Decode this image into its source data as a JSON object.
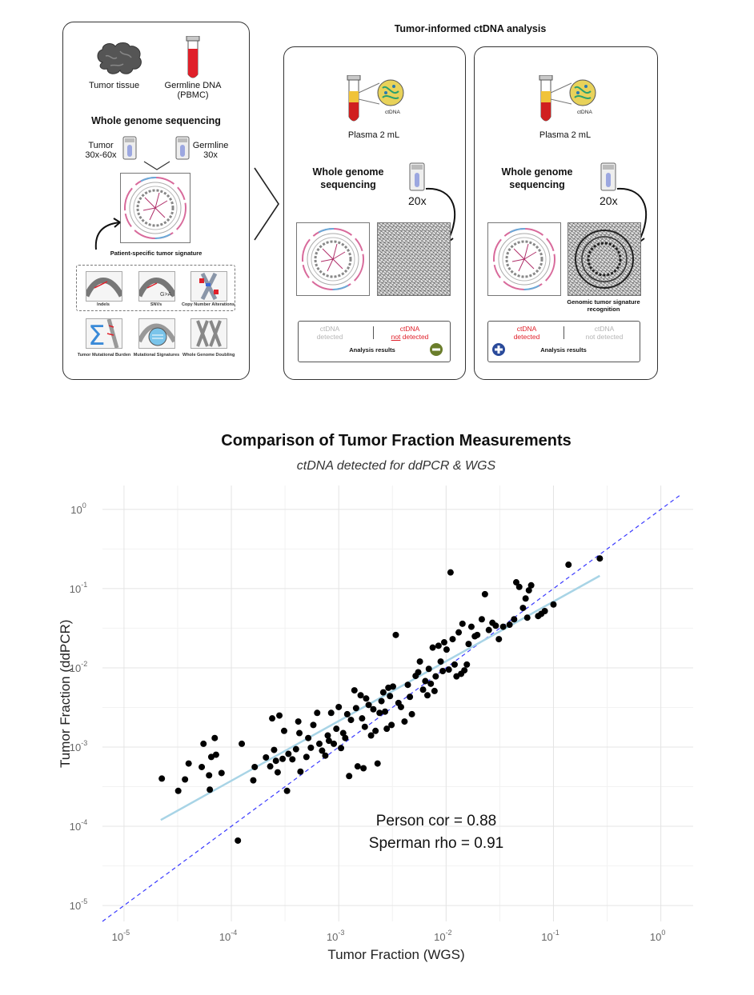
{
  "diagram": {
    "left_panel": {
      "tumor_tissue": "Tumor tissue",
      "germline_dna": "Germline DNA",
      "germline_sub": "(PBMC)",
      "wgs_heading": "Whole genome sequencing",
      "tumor_depth_1": "Tumor",
      "tumor_depth_2": "30x-60x",
      "germline_depth_1": "Germline",
      "germline_depth_2": "30x",
      "signature_label": "Patient-specific tumor signature",
      "features": [
        "Indels",
        "SNVs",
        "Copy Number Alterations",
        "Tumor Mutational Burden",
        "Mutational Signatures",
        "Whole Genome Doubling"
      ],
      "snv_text": "G>A"
    },
    "analysis_title": "Tumor-informed ctDNA analysis",
    "ctdna_badge": "ctDNA",
    "mid_panel": {
      "plasma": "Plasma 2 mL",
      "wgs_1": "Whole genome",
      "wgs_2": "sequencing",
      "depth": "20x",
      "res_left_1": "ctDNA",
      "res_left_2": "detected",
      "res_right_1": "ctDNA",
      "res_right_2a": "not",
      "res_right_2b": " detected",
      "results": "Analysis results",
      "result_icon": "minus-circle-icon"
    },
    "right_panel": {
      "plasma": "Plasma 2 mL",
      "wgs_1": "Whole genome",
      "wgs_2": "sequencing",
      "depth": "20x",
      "recog_1": "Genomic tumor signature",
      "recog_2": "recognition",
      "res_left_1": "ctDNA",
      "res_left_2": "detected",
      "res_right_1": "ctDNA",
      "res_right_2": "not detected",
      "results": "Analysis results",
      "result_icon": "plus-circle-icon"
    },
    "colors": {
      "red": "#e0202a",
      "green": "#6a7d2b",
      "blue": "#2a4a9a",
      "ring_pink": "#d86a9b",
      "ring_blue": "#6aaad8"
    }
  },
  "chart_data": {
    "type": "scatter",
    "title": "Comparison of Tumor Fraction Measurements",
    "subtitle": "ctDNA detected for ddPCR & WGS",
    "xlabel": "Tumor Fraction (WGS)",
    "ylabel": "Tumor Fraction (ddPCR)",
    "x_scale": "log10",
    "y_scale": "log10",
    "xlim": [
      6.3e-06,
      2.0
    ],
    "ylim": [
      6.3e-06,
      2.0
    ],
    "x_ticks": [
      {
        "base": "10",
        "exp": "-5"
      },
      {
        "base": "10",
        "exp": "-4"
      },
      {
        "base": "10",
        "exp": "-3"
      },
      {
        "base": "10",
        "exp": "-2"
      },
      {
        "base": "10",
        "exp": "-1"
      },
      {
        "base": "10",
        "exp": "0"
      }
    ],
    "y_ticks": [
      {
        "base": "10",
        "exp": "-5"
      },
      {
        "base": "10",
        "exp": "-4"
      },
      {
        "base": "10",
        "exp": "-3"
      },
      {
        "base": "10",
        "exp": "-2"
      },
      {
        "base": "10",
        "exp": "-1"
      },
      {
        "base": "10",
        "exp": "0"
      }
    ],
    "grid": true,
    "annotations": [
      "Person cor = 0.88",
      "Sperman rho = 0.91"
    ],
    "identity_line": {
      "style": "dashed",
      "color": "#3a3aff"
    },
    "fit_line": {
      "color": "#a8d4e6",
      "from": [
        2.2e-05,
        0.00012
      ],
      "to": [
        0.27,
        0.145
      ]
    },
    "point_color": "#000000",
    "points": [
      [
        2.25e-05,
        0.0004
      ],
      [
        3.2e-05,
        0.00028
      ],
      [
        3.7e-05,
        0.00039
      ],
      [
        4e-05,
        0.00062
      ],
      [
        5.3e-05,
        0.00056
      ],
      [
        5.5e-05,
        0.0011
      ],
      [
        6.2e-05,
        0.00044
      ],
      [
        6.3e-05,
        0.00029
      ],
      [
        6.5e-05,
        0.00075
      ],
      [
        7e-05,
        0.0013
      ],
      [
        7.2e-05,
        0.0008
      ],
      [
        8.1e-05,
        0.00047
      ],
      [
        0.000115,
        6.6e-05
      ],
      [
        0.000125,
        0.0011
      ],
      [
        0.00016,
        0.00038
      ],
      [
        0.000165,
        0.00056
      ],
      [
        0.00021,
        0.00074
      ],
      [
        0.00023,
        0.00057
      ],
      [
        0.00024,
        0.0023
      ],
      [
        0.00025,
        0.00092
      ],
      [
        0.00026,
        0.00067
      ],
      [
        0.00027,
        0.00048
      ],
      [
        0.00028,
        0.0025
      ],
      [
        0.0003,
        0.00071
      ],
      [
        0.00031,
        0.0016
      ],
      [
        0.00033,
        0.00028
      ],
      [
        0.00034,
        0.00082
      ],
      [
        0.00037,
        0.0007
      ],
      [
        0.0004,
        0.00094
      ],
      [
        0.00042,
        0.0021
      ],
      [
        0.00043,
        0.0015
      ],
      [
        0.00044,
        0.00049
      ],
      [
        0.0005,
        0.00075
      ],
      [
        0.00052,
        0.0013
      ],
      [
        0.00055,
        0.00098
      ],
      [
        0.00058,
        0.0019
      ],
      [
        0.00063,
        0.0027
      ],
      [
        0.00066,
        0.0011
      ],
      [
        0.0007,
        0.0009
      ],
      [
        0.00075,
        0.00078
      ],
      [
        0.00079,
        0.0014
      ],
      [
        0.00081,
        0.0012
      ],
      [
        0.00085,
        0.0027
      ],
      [
        0.0009,
        0.0011
      ],
      [
        0.00095,
        0.0017
      ],
      [
        0.001,
        0.0032
      ],
      [
        0.00105,
        0.00097
      ],
      [
        0.0011,
        0.0015
      ],
      [
        0.00115,
        0.0013
      ],
      [
        0.0012,
        0.0026
      ],
      [
        0.0013,
        0.0022
      ],
      [
        0.00125,
        0.00043
      ],
      [
        0.0014,
        0.0052
      ],
      [
        0.00145,
        0.0031
      ],
      [
        0.0015,
        0.00057
      ],
      [
        0.0016,
        0.0045
      ],
      [
        0.00165,
        0.0023
      ],
      [
        0.0017,
        0.00054
      ],
      [
        0.00175,
        0.0018
      ],
      [
        0.0018,
        0.0041
      ],
      [
        0.0019,
        0.0034
      ],
      [
        0.002,
        0.0014
      ],
      [
        0.0021,
        0.003
      ],
      [
        0.0022,
        0.0016
      ],
      [
        0.0023,
        0.00062
      ],
      [
        0.0024,
        0.0027
      ],
      [
        0.0025,
        0.0038
      ],
      [
        0.0026,
        0.0049
      ],
      [
        0.0027,
        0.0028
      ],
      [
        0.0028,
        0.0017
      ],
      [
        0.0029,
        0.0056
      ],
      [
        0.003,
        0.0044
      ],
      [
        0.0031,
        0.0019
      ],
      [
        0.0032,
        0.0058
      ],
      [
        0.0034,
        0.026
      ],
      [
        0.0036,
        0.0036
      ],
      [
        0.0038,
        0.0032
      ],
      [
        0.0041,
        0.0021
      ],
      [
        0.0044,
        0.0061
      ],
      [
        0.0046,
        0.0043
      ],
      [
        0.0048,
        0.0026
      ],
      [
        0.0052,
        0.0079
      ],
      [
        0.0055,
        0.0088
      ],
      [
        0.0057,
        0.012
      ],
      [
        0.0061,
        0.0053
      ],
      [
        0.0064,
        0.0068
      ],
      [
        0.0067,
        0.0045
      ],
      [
        0.0069,
        0.0097
      ],
      [
        0.0072,
        0.0063
      ],
      [
        0.0075,
        0.018
      ],
      [
        0.0078,
        0.0051
      ],
      [
        0.008,
        0.0078
      ],
      [
        0.0085,
        0.019
      ],
      [
        0.0089,
        0.012
      ],
      [
        0.0093,
        0.0091
      ],
      [
        0.0096,
        0.021
      ],
      [
        0.0101,
        0.017
      ],
      [
        0.0106,
        0.0095
      ],
      [
        0.011,
        0.16
      ],
      [
        0.0115,
        0.023
      ],
      [
        0.012,
        0.011
      ],
      [
        0.0125,
        0.0078
      ],
      [
        0.0131,
        0.028
      ],
      [
        0.0138,
        0.0084
      ],
      [
        0.0142,
        0.036
      ],
      [
        0.0148,
        0.0093
      ],
      [
        0.0156,
        0.011
      ],
      [
        0.0162,
        0.02
      ],
      [
        0.0172,
        0.033
      ],
      [
        0.0185,
        0.025
      ],
      [
        0.0195,
        0.026
      ],
      [
        0.0215,
        0.041
      ],
      [
        0.023,
        0.085
      ],
      [
        0.025,
        0.03
      ],
      [
        0.027,
        0.037
      ],
      [
        0.029,
        0.034
      ],
      [
        0.031,
        0.023
      ],
      [
        0.034,
        0.033
      ],
      [
        0.039,
        0.035
      ],
      [
        0.043,
        0.041
      ],
      [
        0.045,
        0.12
      ],
      [
        0.048,
        0.105
      ],
      [
        0.052,
        0.057
      ],
      [
        0.055,
        0.075
      ],
      [
        0.057,
        0.043
      ],
      [
        0.059,
        0.095
      ],
      [
        0.062,
        0.11
      ],
      [
        0.072,
        0.045
      ],
      [
        0.077,
        0.048
      ],
      [
        0.083,
        0.052
      ],
      [
        0.1,
        0.063
      ],
      [
        0.138,
        0.2
      ],
      [
        0.27,
        0.24
      ]
    ]
  }
}
